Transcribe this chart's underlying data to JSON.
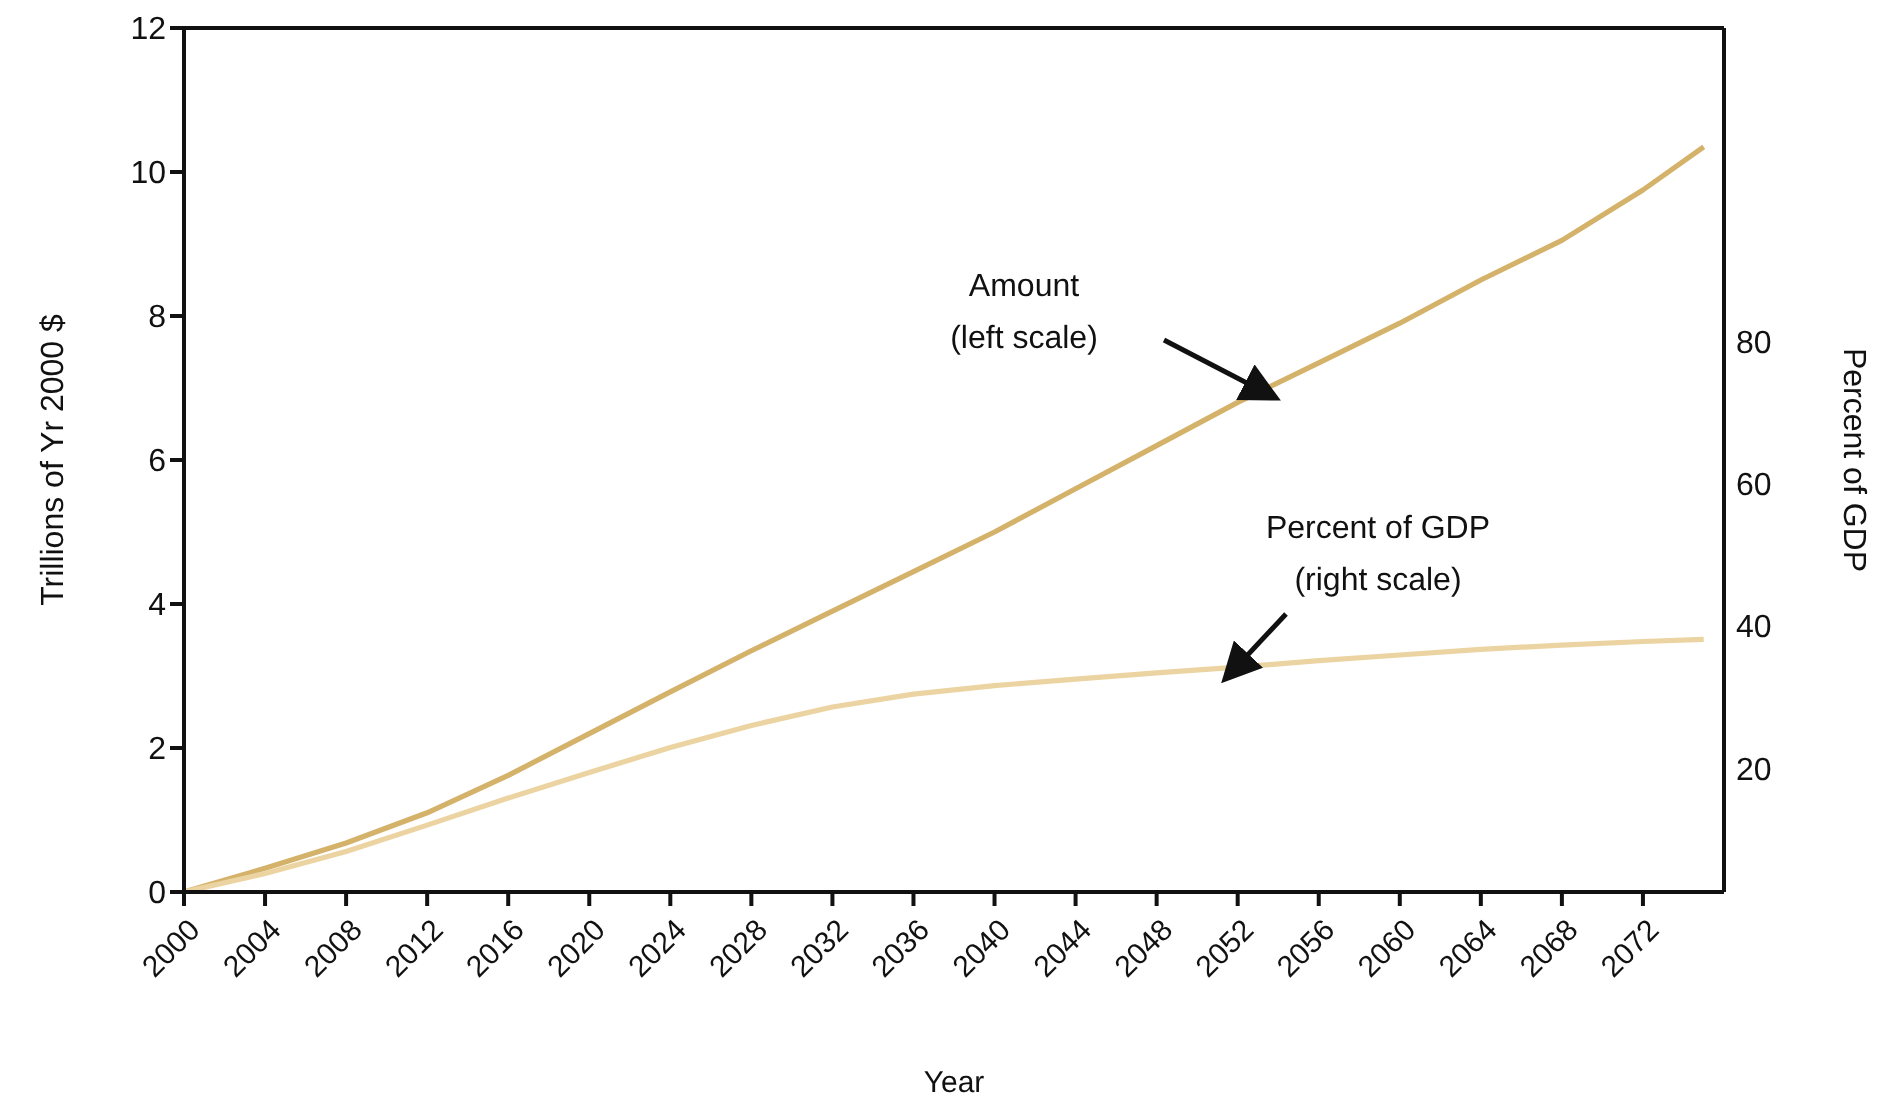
{
  "chart_data": {
    "type": "line",
    "xlabel": "Year",
    "ylabel": "Trillions of Yr 2000 $",
    "y2label": "Percent of GDP",
    "x": [
      2000,
      2004,
      2008,
      2012,
      2016,
      2020,
      2024,
      2028,
      2032,
      2036,
      2040,
      2044,
      2048,
      2052,
      2056,
      2060,
      2064,
      2068,
      2072,
      2075
    ],
    "series": [
      {
        "color": "#d4b26a",
        "values": [
          0,
          0.33,
          0.68,
          1.1,
          1.62,
          2.2,
          2.78,
          3.35,
          3.9,
          4.45,
          5.0,
          5.6,
          6.2,
          6.8,
          7.35,
          7.9,
          8.5,
          9.05,
          9.75,
          10.35
        ]
      },
      {
        "color": "#ecd4a2",
        "axis": "y2",
        "values": [
          2.6,
          5.2,
          8.3,
          12,
          15.8,
          19.4,
          22.9,
          26,
          28.6,
          30.4,
          31.6,
          32.5,
          33.4,
          34.2,
          35.1,
          35.9,
          36.7,
          37.3,
          37.8,
          38.1
        ]
      }
    ],
    "xlim": [
      2000,
      2076
    ],
    "xticks": [
      2000,
      2004,
      2008,
      2012,
      2016,
      2020,
      2024,
      2028,
      2032,
      2036,
      2040,
      2044,
      2048,
      2052,
      2056,
      2060,
      2064,
      2068,
      2072
    ],
    "ylim": [
      0,
      12
    ],
    "yticks": [
      0,
      2,
      4,
      6,
      8,
      10,
      12
    ],
    "y2lim": [
      2.6,
      124
    ],
    "y2ticks": [
      20,
      40,
      60,
      80
    ],
    "annotations": [
      "Amount\n(left scale)",
      "Percent of GDP\n(right scale)"
    ]
  }
}
